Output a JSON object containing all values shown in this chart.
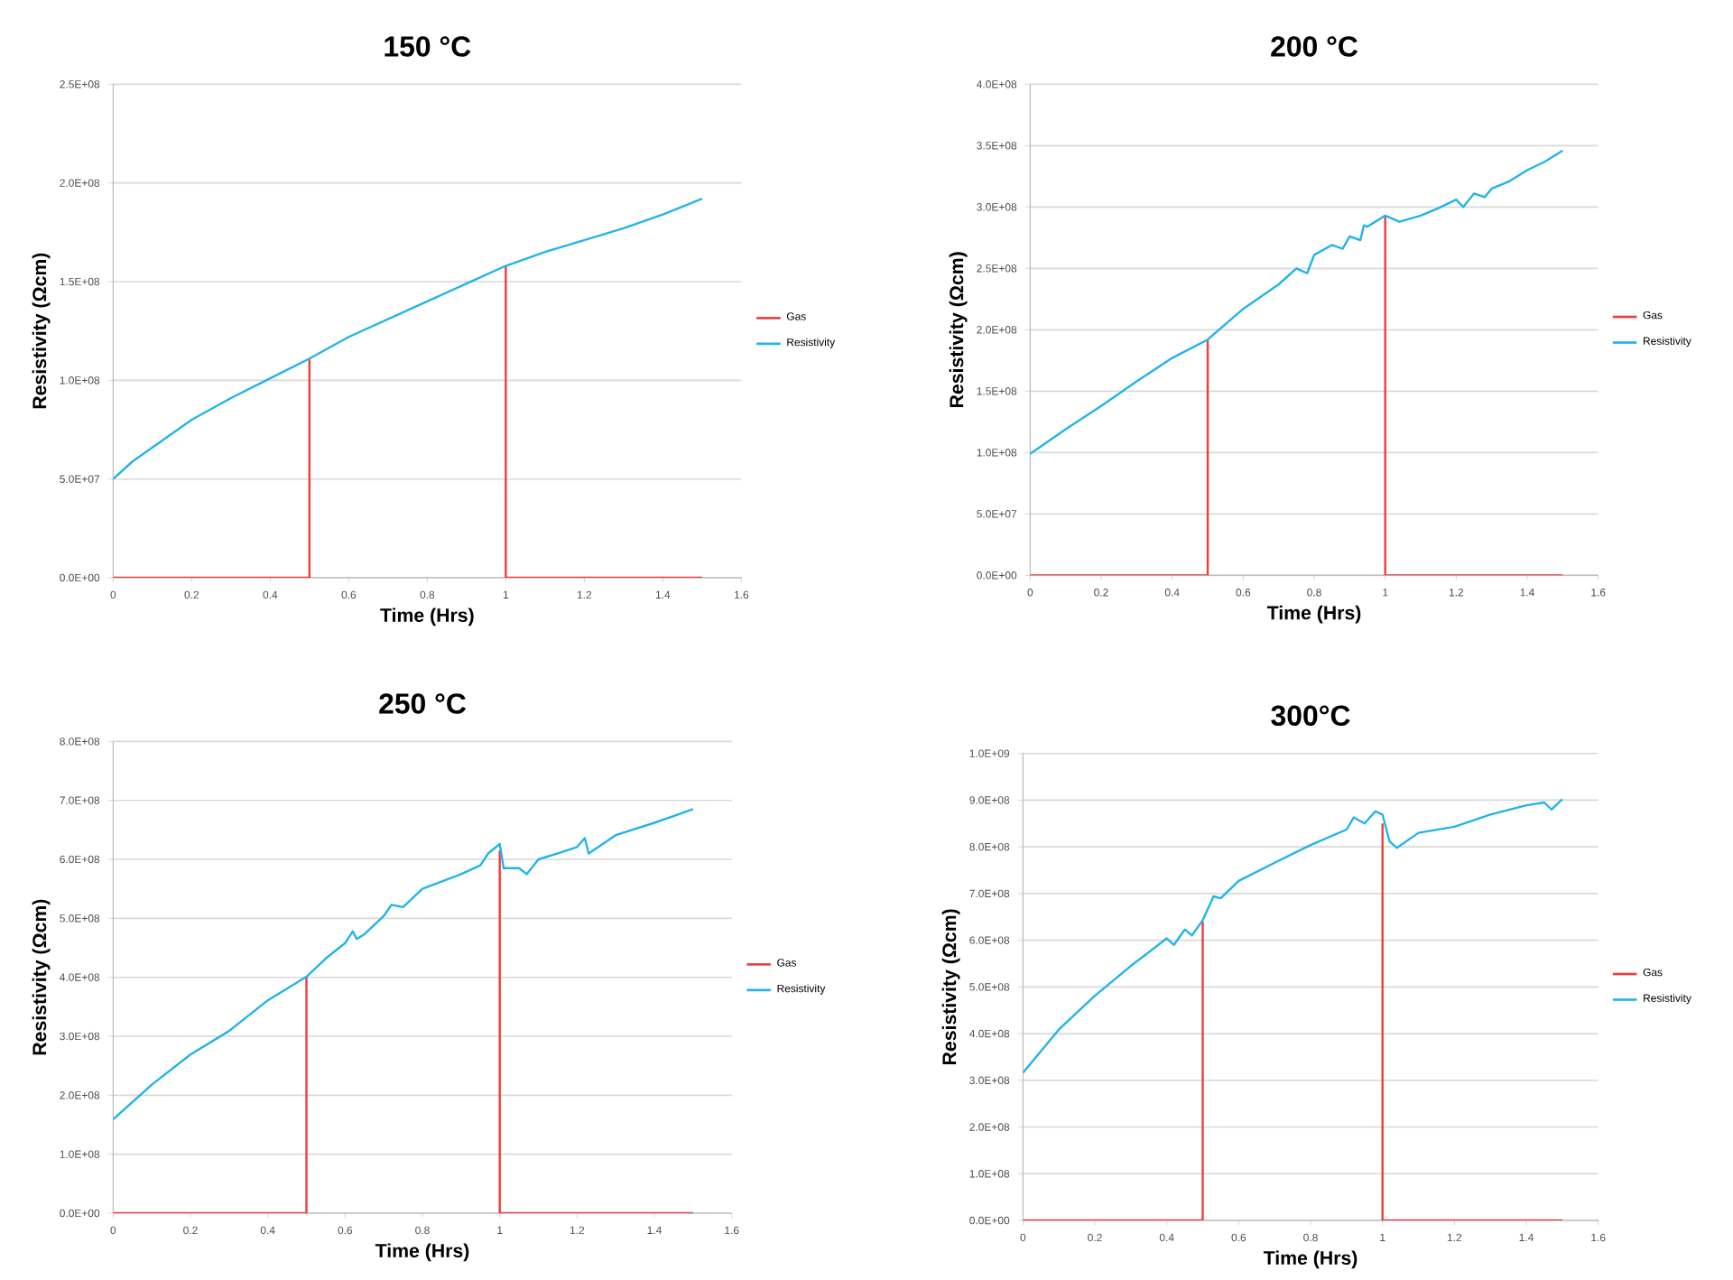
{
  "chart_data": [
    {
      "type": "line",
      "title": "150 °C",
      "xlabel": "Time (Hrs)",
      "ylabel": "Resistivity (Ωcm)",
      "xlim": [
        0,
        1.6
      ],
      "xticks": [
        0,
        0.2,
        0.4,
        0.6,
        0.8,
        1,
        1.2,
        1.4,
        1.6
      ],
      "ylim": [
        0,
        250000000
      ],
      "yticks": [
        {
          "value": 0,
          "label": "0.0E+00"
        },
        {
          "value": 50000000,
          "label": "5.0E+07"
        },
        {
          "value": 100000000,
          "label": "1.0E+08"
        },
        {
          "value": 150000000,
          "label": "1.5E+08"
        },
        {
          "value": 200000000,
          "label": "2.0E+08"
        },
        {
          "value": 250000000,
          "label": "2.5E+08"
        }
      ],
      "grid": "y",
      "legend": "right",
      "series": [
        {
          "name": "Gas",
          "color": "#f03c3c",
          "x": [
            0,
            0.5,
            0.5,
            0.75,
            1,
            1,
            1.5
          ],
          "values": [
            0,
            0,
            111000000,
            null,
            158000000,
            0,
            0
          ]
        },
        {
          "name": "Resistivity",
          "color": "#22b4e8",
          "x": [
            0,
            0.05,
            0.1,
            0.2,
            0.3,
            0.4,
            0.5,
            0.6,
            0.7,
            0.8,
            0.9,
            1.0,
            1.1,
            1.2,
            1.3,
            1.4,
            1.5
          ],
          "values": [
            50000000,
            59000000,
            66000000,
            80000000,
            91000000,
            101000000,
            111000000,
            122000000,
            131000000,
            140000000,
            149000000,
            158000000,
            165000000,
            171000000,
            177000000,
            184000000,
            192000000
          ]
        }
      ]
    },
    {
      "type": "line",
      "title": "200 °C",
      "xlabel": "Time (Hrs)",
      "ylabel": "Resistivity (Ωcm)",
      "xlim": [
        0,
        1.6
      ],
      "xticks": [
        0,
        0.2,
        0.4,
        0.6,
        0.8,
        1,
        1.2,
        1.4,
        1.6
      ],
      "ylim": [
        0,
        400000000
      ],
      "yticks": [
        {
          "value": 0,
          "label": "0.0E+00"
        },
        {
          "value": 50000000,
          "label": "5.0E+07"
        },
        {
          "value": 100000000,
          "label": "1.0E+08"
        },
        {
          "value": 150000000,
          "label": "1.5E+08"
        },
        {
          "value": 200000000,
          "label": "2.0E+08"
        },
        {
          "value": 250000000,
          "label": "2.5E+08"
        },
        {
          "value": 300000000,
          "label": "3.0E+08"
        },
        {
          "value": 350000000,
          "label": "3.5E+08"
        },
        {
          "value": 400000000,
          "label": "4.0E+08"
        }
      ],
      "grid": "y",
      "legend": "right",
      "series": [
        {
          "name": "Gas",
          "color": "#f03c3c",
          "x": [
            0,
            0.5,
            0.5,
            0.75,
            1,
            1,
            1.5
          ],
          "values": [
            0,
            0,
            192000000,
            null,
            293000000,
            0,
            0
          ]
        },
        {
          "name": "Resistivity",
          "color": "#22b4e8",
          "x": [
            0,
            0.1,
            0.2,
            0.3,
            0.4,
            0.5,
            0.6,
            0.7,
            0.75,
            0.78,
            0.8,
            0.85,
            0.88,
            0.9,
            0.93,
            0.94,
            0.95,
            1.0,
            1.04,
            1.1,
            1.15,
            1.2,
            1.22,
            1.25,
            1.28,
            1.3,
            1.35,
            1.4,
            1.45,
            1.5
          ],
          "values": [
            99000000,
            119000000,
            138000000,
            158000000,
            177000000,
            192000000,
            217000000,
            237000000,
            250000000,
            246000000,
            261000000,
            269000000,
            266000000,
            276000000,
            273000000,
            285000000,
            284000000,
            293000000,
            288000000,
            293000000,
            299000000,
            306000000,
            300000000,
            311000000,
            308000000,
            315000000,
            321000000,
            330000000,
            337000000,
            346000000
          ]
        }
      ]
    },
    {
      "type": "line",
      "title": "250 °C",
      "xlabel": "Time (Hrs)",
      "ylabel": "Resistivity (Ωcm)",
      "xlim": [
        0,
        1.6
      ],
      "xticks": [
        0,
        0.2,
        0.4,
        0.6,
        0.8,
        1,
        1.2,
        1.4,
        1.6
      ],
      "ylim": [
        0,
        800000000
      ],
      "yticks": [
        {
          "value": 0,
          "label": "0.0E+00"
        },
        {
          "value": 100000000,
          "label": "1.0E+08"
        },
        {
          "value": 200000000,
          "label": "2.0E+08"
        },
        {
          "value": 300000000,
          "label": "3.0E+08"
        },
        {
          "value": 400000000,
          "label": "4.0E+08"
        },
        {
          "value": 500000000,
          "label": "5.0E+08"
        },
        {
          "value": 600000000,
          "label": "6.0E+08"
        },
        {
          "value": 700000000,
          "label": "7.0E+08"
        },
        {
          "value": 800000000,
          "label": "8.0E+08"
        }
      ],
      "grid": "y",
      "legend": "right",
      "series": [
        {
          "name": "Gas",
          "color": "#f03c3c",
          "x": [
            0,
            0.5,
            0.5,
            0.75,
            1,
            1,
            1.5
          ],
          "values": [
            0,
            0,
            401000000,
            null,
            615000000,
            0,
            0
          ]
        },
        {
          "name": "Resistivity",
          "color": "#22b4e8",
          "x": [
            0,
            0.1,
            0.2,
            0.3,
            0.4,
            0.5,
            0.55,
            0.6,
            0.62,
            0.63,
            0.65,
            0.7,
            0.72,
            0.75,
            0.8,
            0.9,
            0.95,
            0.97,
            1.0,
            1.01,
            1.05,
            1.07,
            1.1,
            1.15,
            1.2,
            1.22,
            1.23,
            1.3,
            1.4,
            1.5
          ],
          "values": [
            159000000,
            218000000,
            269000000,
            309000000,
            361000000,
            401000000,
            432000000,
            458000000,
            478000000,
            465000000,
            473000000,
            504000000,
            523000000,
            519000000,
            550000000,
            575000000,
            590000000,
            610000000,
            626000000,
            585000000,
            585000000,
            575000000,
            600000000,
            610000000,
            621000000,
            636000000,
            610000000,
            641000000,
            662000000,
            685000000
          ]
        }
      ]
    },
    {
      "type": "line",
      "title": "300°C",
      "xlabel": "Time (Hrs)",
      "ylabel": "Resistivity (Ωcm)",
      "xlim": [
        0,
        1.6
      ],
      "xticks": [
        0,
        0.2,
        0.4,
        0.6,
        0.8,
        1,
        1.2,
        1.4,
        1.6
      ],
      "ylim": [
        0,
        1000000000
      ],
      "yticks": [
        {
          "value": 0,
          "label": "0.0E+00"
        },
        {
          "value": 100000000,
          "label": "1.0E+08"
        },
        {
          "value": 200000000,
          "label": "2.0E+08"
        },
        {
          "value": 300000000,
          "label": "3.0E+08"
        },
        {
          "value": 400000000,
          "label": "4.0E+08"
        },
        {
          "value": 500000000,
          "label": "5.0E+08"
        },
        {
          "value": 600000000,
          "label": "6.0E+08"
        },
        {
          "value": 700000000,
          "label": "7.0E+08"
        },
        {
          "value": 800000000,
          "label": "8.0E+08"
        },
        {
          "value": 900000000,
          "label": "9.0E+08"
        },
        {
          "value": 1000000000,
          "label": "1.0E+09"
        }
      ],
      "grid": "y",
      "legend": "right",
      "series": [
        {
          "name": "Gas",
          "color": "#f03c3c",
          "x": [
            0,
            0.5,
            0.5,
            0.75,
            1,
            1,
            1.5
          ],
          "values": [
            0,
            0,
            640000000,
            null,
            850000000,
            0,
            0
          ]
        },
        {
          "name": "Resistivity",
          "color": "#22b4e8",
          "x": [
            0,
            0.1,
            0.2,
            0.3,
            0.4,
            0.42,
            0.45,
            0.47,
            0.5,
            0.53,
            0.55,
            0.6,
            0.7,
            0.8,
            0.9,
            0.92,
            0.95,
            0.98,
            1.0,
            1.02,
            1.04,
            1.1,
            1.2,
            1.3,
            1.4,
            1.45,
            1.47,
            1.5
          ],
          "values": [
            316000000,
            409000000,
            481000000,
            545000000,
            604000000,
            590000000,
            623000000,
            610000000,
            643000000,
            694000000,
            690000000,
            727000000,
            766000000,
            804000000,
            837000000,
            863000000,
            850000000,
            876000000,
            869000000,
            811000000,
            798000000,
            830000000,
            843000000,
            869000000,
            889000000,
            895000000,
            880000000,
            902000000
          ]
        }
      ]
    }
  ]
}
